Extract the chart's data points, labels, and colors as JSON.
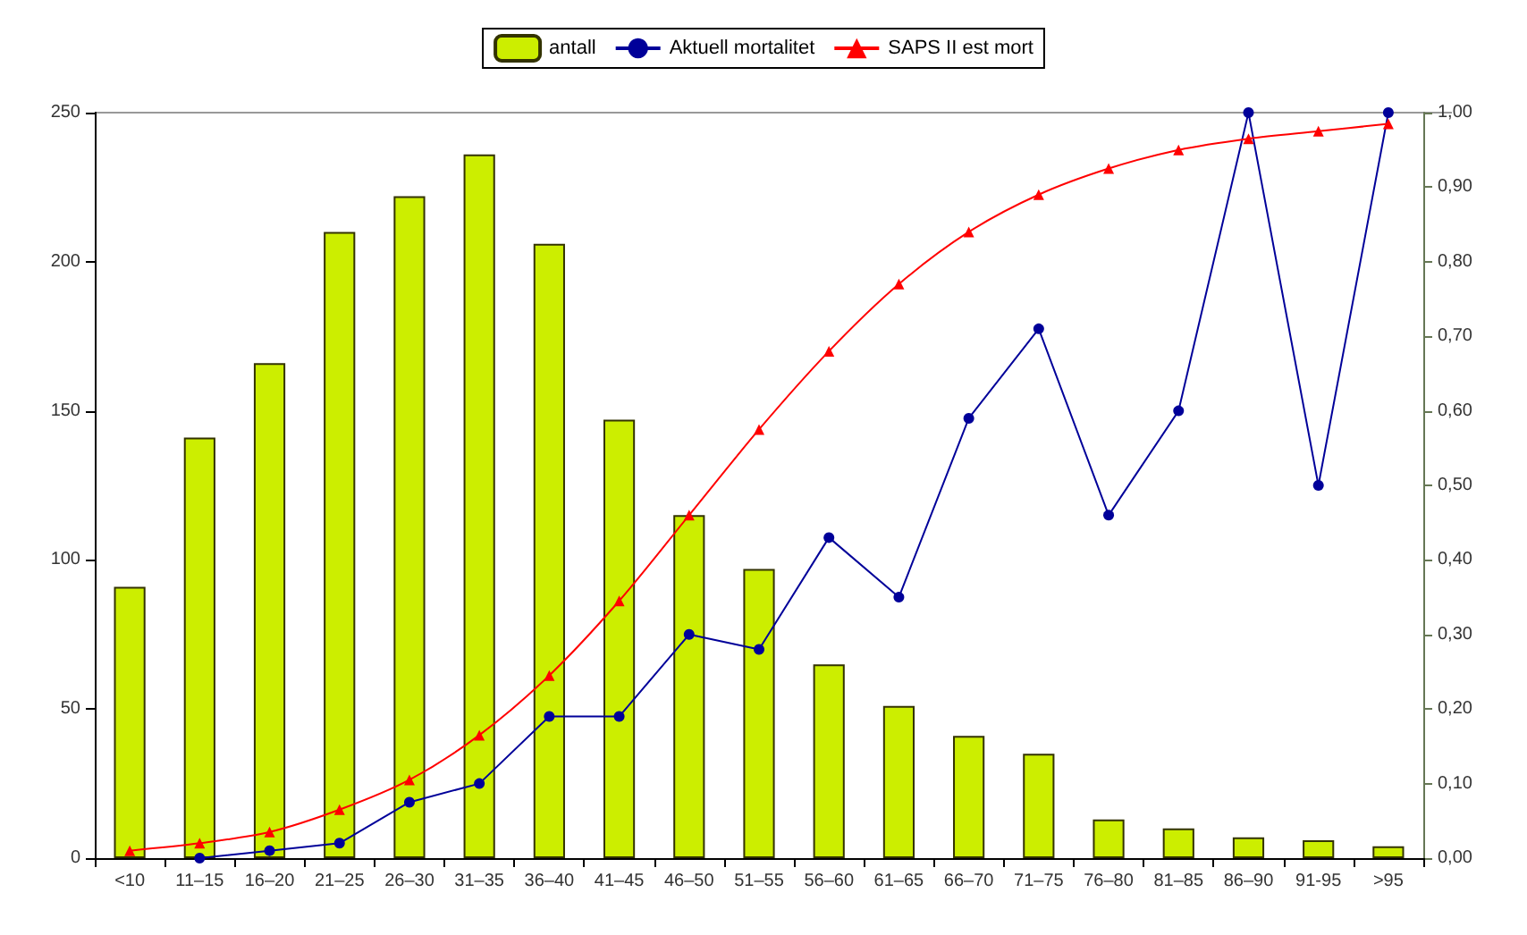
{
  "chart_data": {
    "type": "bar",
    "categories": [
      "<10",
      "11–15",
      "16–20",
      "21–25",
      "26–30",
      "31–35",
      "36–40",
      "41–45",
      "46–50",
      "51–55",
      "56–60",
      "61–65",
      "66–70",
      "71–75",
      "76–80",
      "81–85",
      "86–90",
      "91-95",
      ">95"
    ],
    "series": [
      {
        "name": "antall",
        "color": "#ccee00",
        "values": [
          91,
          141,
          166,
          210,
          222,
          236,
          206,
          147,
          115,
          97,
          65,
          51,
          41,
          35,
          13,
          10,
          7,
          6,
          4
        ]
      },
      {
        "name": "Aktuell mortalitet",
        "type": "line",
        "axis": "y2",
        "color": "#000099",
        "marker": "circle",
        "values": [
          null,
          0,
          0.01,
          0.02,
          0.075,
          0.1,
          0.19,
          0.19,
          0.3,
          0.28,
          0.43,
          0.35,
          0.59,
          0.71,
          0.46,
          0.6,
          1.0,
          0.5,
          1.0
        ]
      },
      {
        "name": "SAPS II est mort",
        "type": "line",
        "axis": "y2",
        "color": "#ff0000",
        "marker": "triangle",
        "values": [
          0.01,
          0.02,
          0.035,
          0.065,
          0.105,
          0.165,
          0.245,
          0.345,
          0.46,
          0.575,
          0.68,
          0.77,
          0.84,
          0.89,
          0.925,
          0.95,
          0.965,
          0.975,
          0.985
        ]
      }
    ],
    "ylim": [
      0,
      250
    ],
    "yticks": [
      0,
      50,
      100,
      150,
      200,
      250
    ],
    "y2lim": [
      0,
      1
    ],
    "y2ticks": [
      {
        "value": 0,
        "label": "0,00"
      },
      {
        "value": 0.1,
        "label": "0,10"
      },
      {
        "value": 0.2,
        "label": "0,20"
      },
      {
        "value": 0.3,
        "label": "0,30"
      },
      {
        "value": 0.4,
        "label": "0,40"
      },
      {
        "value": 0.5,
        "label": "0,50"
      },
      {
        "value": 0.6,
        "label": "0,60"
      },
      {
        "value": 0.7,
        "label": "0,70"
      },
      {
        "value": 0.8,
        "label": "0,80"
      },
      {
        "value": 0.9,
        "label": "0,90"
      },
      {
        "value": 1,
        "label": "1,00"
      }
    ],
    "legend": "top",
    "grid": false
  }
}
